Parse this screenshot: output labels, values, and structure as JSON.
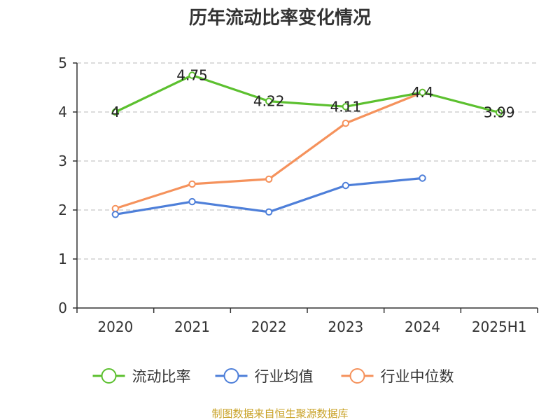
{
  "chart_data": {
    "type": "line",
    "title": "历年流动比率变化情况",
    "categories": [
      "2020",
      "2021",
      "2022",
      "2023",
      "2024",
      "2025H1"
    ],
    "ylim": [
      0,
      5
    ],
    "yticks": [
      "0",
      "1",
      "2",
      "3",
      "4",
      "5"
    ],
    "grid": true,
    "legend_position": "bottom",
    "series": [
      {
        "name": "流动比率",
        "color": "#5cc02f",
        "values": [
          4,
          4.75,
          4.22,
          4.11,
          4.4,
          3.99
        ],
        "labels": [
          "4",
          "4.75",
          "4.22",
          "4.11",
          "4.4",
          "3.99"
        ]
      },
      {
        "name": "行业均值",
        "color": "#4e7fd9",
        "values": [
          1.91,
          2.17,
          1.96,
          2.5,
          2.65,
          null
        ]
      },
      {
        "name": "行业中位数",
        "color": "#f5925c",
        "values": [
          2.03,
          2.53,
          2.63,
          3.77,
          4.4,
          null
        ]
      }
    ],
    "source": "制图数据来自恒生聚源数据库"
  }
}
